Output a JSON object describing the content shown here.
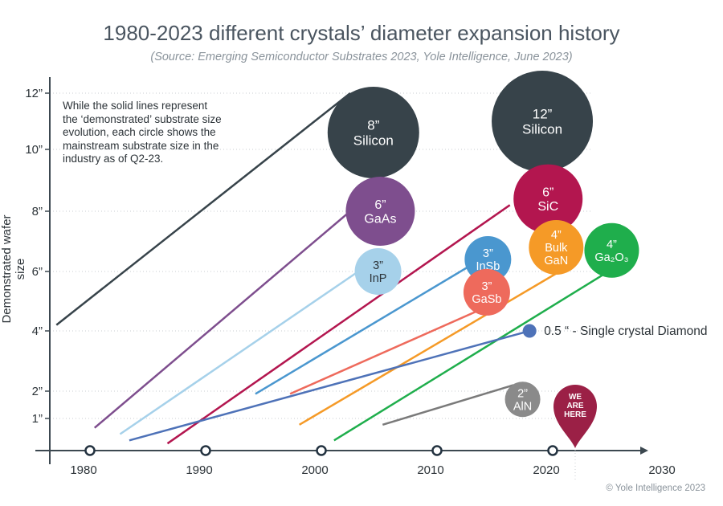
{
  "chart_data": {
    "type": "line",
    "title": "1980-2023 different crystals’ diameter expansion history",
    "subtitle": "(Source: Emerging Semiconductor Substrates 2023, Yole Intelligence, June 2023)",
    "ylabel": "Demonstrated wafer size",
    "note": "While the solid lines represent the ‘demonstrated’ substrate size evolution, each circle shows the mainstream substrate size in the industry as of Q2-23.",
    "x_ticks": [
      "1980",
      "1990",
      "2000",
      "2010",
      "2020",
      "2030"
    ],
    "y_ticks": [
      "1”",
      "2”",
      "4”",
      "6”",
      "8”",
      "10”",
      "12”"
    ],
    "series": [
      {
        "key": "silicon",
        "color": "#37434a",
        "points": [
          [
            1977.1,
            4.2
          ],
          [
            2002.5,
            12
          ]
        ]
      },
      {
        "key": "gaas",
        "color": "#7e4e8e",
        "points": [
          [
            1980.4,
            0.7
          ],
          [
            2002.5,
            8
          ]
        ]
      },
      {
        "key": "inp",
        "color": "#a6d1ea",
        "points": [
          [
            1982.6,
            0.5
          ],
          [
            2003.2,
            6
          ]
        ]
      },
      {
        "key": "sic",
        "color": "#b3164f",
        "points": [
          [
            1986.7,
            0.2
          ],
          [
            2016.3,
            8.2
          ]
        ]
      },
      {
        "key": "insb",
        "color": "#4a97cf",
        "points": [
          [
            1994.3,
            1.9
          ],
          [
            2012.9,
            6.2
          ]
        ]
      },
      {
        "key": "gasb",
        "color": "#ee6a5c",
        "points": [
          [
            1997.3,
            1.9
          ],
          [
            2015.4,
            5
          ]
        ]
      },
      {
        "key": "ga2o3",
        "color": "#1fae4c",
        "points": [
          [
            2001.1,
            0.3
          ],
          [
            2024.4,
            5.9
          ]
        ]
      },
      {
        "key": "bulk-gan",
        "color": "#f59a27",
        "points": [
          [
            1998.1,
            0.8
          ],
          [
            2020.6,
            6
          ]
        ]
      },
      {
        "key": "diamond",
        "color": "#4e72b8",
        "points": [
          [
            1983.4,
            0.3
          ],
          [
            2018,
            4
          ]
        ]
      },
      {
        "key": "aln",
        "color": "#7a7a7a",
        "points": [
          [
            2005.3,
            0.8
          ],
          [
            2016.6,
            2.2
          ]
        ]
      }
    ],
    "bubbles": [
      {
        "key": "silicon-8",
        "label": [
          "8”",
          "Silicon"
        ],
        "x": 2004.5,
        "y": 10.6,
        "color": "#37434a",
        "size": "8”"
      },
      {
        "key": "silicon-12",
        "label": [
          "12”",
          "Silicon"
        ],
        "x": 2019.1,
        "y": 11,
        "color": "#37434a",
        "size": "12”"
      },
      {
        "key": "gaas",
        "label": [
          "6”",
          "GaAs"
        ],
        "x": 2005.1,
        "y": 8,
        "color": "#7e4e8e",
        "size": "6”"
      },
      {
        "key": "sic",
        "label": [
          "6”",
          "SiC"
        ],
        "x": 2019.6,
        "y": 8.4,
        "color": "#b3164f",
        "size": "6”"
      },
      {
        "key": "inp",
        "label": [
          "3”",
          "InP"
        ],
        "x": 2004.9,
        "y": 6,
        "color": "#a6d1ea",
        "size": "3”"
      },
      {
        "key": "insb",
        "label": [
          "3”",
          "InSb"
        ],
        "x": 2014.4,
        "y": 6.4,
        "color": "#4a97cf",
        "size": "3”"
      },
      {
        "key": "gasb",
        "label": [
          "3”",
          "GaSb"
        ],
        "x": 2014.3,
        "y": 5.3,
        "color": "#ee6a5c",
        "size": "3”"
      },
      {
        "key": "bulk-gan",
        "label": [
          "4”",
          "Bulk",
          "GaN"
        ],
        "x": 2020.3,
        "y": 6.8,
        "color": "#f59a27",
        "size": "4”"
      },
      {
        "key": "ga2o3",
        "label": [
          "4”",
          "Ga₂O₃"
        ],
        "x": 2025.1,
        "y": 6.7,
        "color": "#1fae4c",
        "size": "4”"
      },
      {
        "key": "aln",
        "label": [
          "2”",
          "AlN"
        ],
        "x": 2017.4,
        "y": 1.7,
        "color": "#8a8a8a",
        "size": "2”"
      }
    ],
    "diamond_marker": {
      "x": 2018,
      "y": 4,
      "label": "0.5 “ - Single crystal Diamond"
    },
    "you_are_here": {
      "x": 2022.5,
      "label": [
        "WE",
        "ARE",
        "HERE"
      ],
      "color": "#9b2046"
    },
    "x_markers": [
      1980,
      1990,
      2000,
      2010,
      2020
    ]
  },
  "copyright": "© Yole Intelligence 2023"
}
